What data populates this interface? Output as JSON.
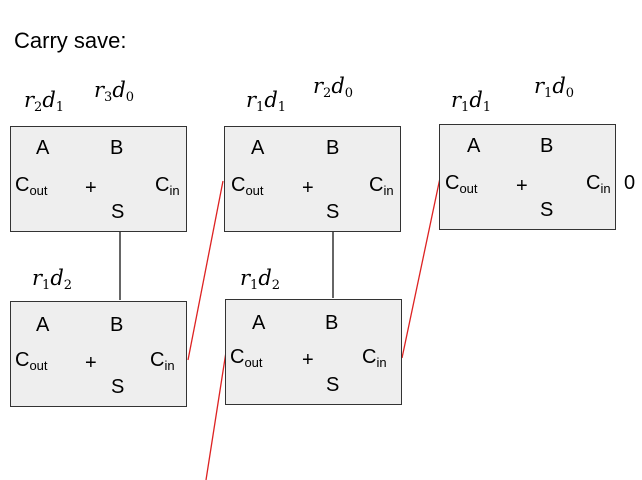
{
  "title": "Carry save:",
  "cell": {
    "a": "A",
    "b": "B",
    "cout_main": "C",
    "cout_sub": "out",
    "plus": "+",
    "cin_main": "C",
    "cin_sub": "in",
    "sum": "S"
  },
  "labels": {
    "col1_top_left": {
      "base": "r",
      "i": "2",
      "mid": "d",
      "j": "1"
    },
    "col1_top_right": {
      "base": "r",
      "i": "3",
      "mid": "d",
      "j": "0"
    },
    "col2_top_left": {
      "base": "r",
      "i": "1",
      "mid": "d",
      "j": "1"
    },
    "col2_top_right": {
      "base": "r",
      "i": "2",
      "mid": "d",
      "j": "0"
    },
    "col3_top_left": {
      "base": "r",
      "i": "1",
      "mid": "d",
      "j": "1"
    },
    "col3_top_right": {
      "base": "r",
      "i": "1",
      "mid": "d",
      "j": "0"
    },
    "col1_bottom": {
      "base": "r",
      "i": "1",
      "mid": "d",
      "j": "2"
    },
    "col2_bottom": {
      "base": "r",
      "i": "1",
      "mid": "d",
      "j": "2"
    }
  },
  "carry_in_constant": "0",
  "colors": {
    "box_fill": "#eeeeee",
    "box_border": "#333333",
    "carry_wire": "#dd2222",
    "sum_wire": "#333333"
  }
}
